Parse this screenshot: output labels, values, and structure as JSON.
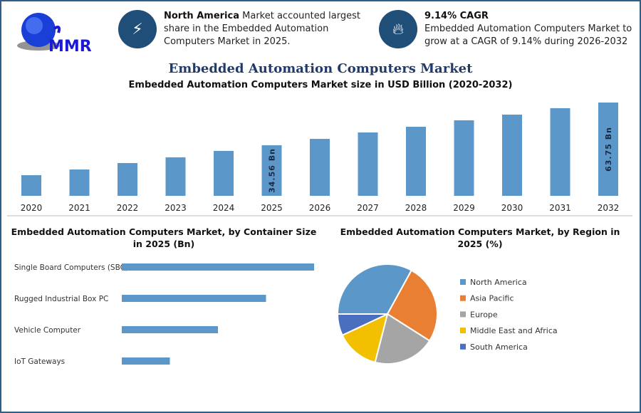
{
  "logo": {
    "text": "MMR"
  },
  "card1": {
    "icon": "lightning-icon",
    "bold": "North America",
    "text": " Market accounted largest share in the Embedded Automation Computers Market in 2025."
  },
  "card2": {
    "icon": "flame-icon",
    "bold": "9.14% CAGR",
    "text": "Embedded Automation Computers Market to grow at a CAGR of 9.14% during 2026-2032"
  },
  "title": "Embedded Automation Computers Market",
  "colors": {
    "bar": "#5b97c8",
    "navy": "#1f4e79",
    "pie": [
      "#5b97c8",
      "#e97f33",
      "#a5a5a5",
      "#f2c000",
      "#4a6fbf"
    ]
  },
  "chart_data": [
    {
      "type": "bar",
      "title": "Embedded Automation Computers Market size in USD Billion (2020-2032)",
      "categories": [
        "2020",
        "2021",
        "2022",
        "2023",
        "2024",
        "2025",
        "2026",
        "2027",
        "2028",
        "2029",
        "2030",
        "2031",
        "2032"
      ],
      "values": [
        14.1,
        18.0,
        22.4,
        26.3,
        30.7,
        34.56,
        38.9,
        43.3,
        47.2,
        51.6,
        55.5,
        59.9,
        63.75
      ],
      "data_labels": {
        "2025": "34.56 Bn",
        "2032": "63.75 Bn"
      }
    },
    {
      "type": "bar",
      "orientation": "horizontal",
      "title": "Embedded Automation Computers Market, by Container Size in 2025 (Bn)",
      "categories": [
        "Single Board Computers (SBC)",
        "Rugged Industrial Box PC",
        "Vehicle Computer",
        "IoT Gateways"
      ],
      "values": [
        4,
        3,
        2,
        1
      ]
    },
    {
      "type": "pie",
      "title": "Embedded Automation Computers Market, by Region in 2025 (%)",
      "categories": [
        "North America",
        "Asia Pacific",
        "Europe",
        "Middle East and Africa",
        "South America"
      ],
      "values": [
        33,
        26,
        20,
        14,
        7
      ],
      "legend": "right"
    }
  ]
}
